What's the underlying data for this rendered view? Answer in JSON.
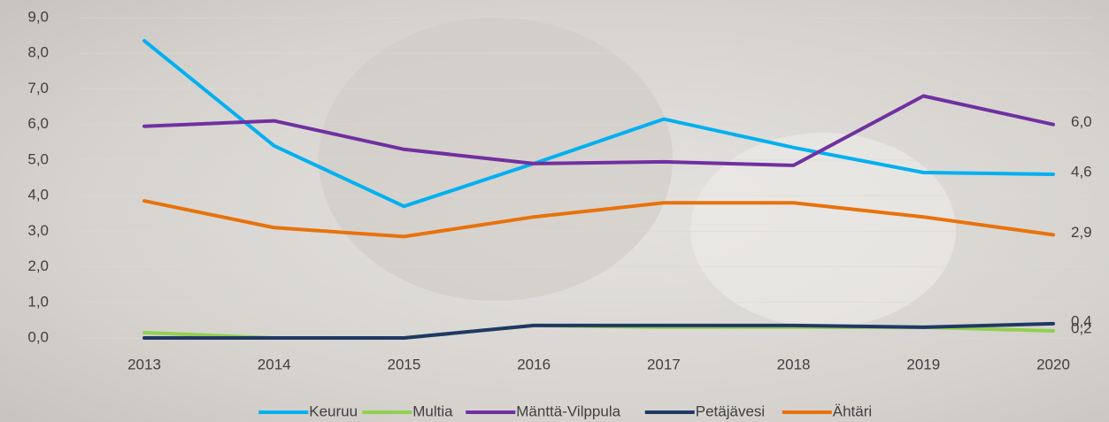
{
  "chart_data": {
    "type": "line",
    "categories": [
      "2013",
      "2014",
      "2015",
      "2016",
      "2017",
      "2018",
      "2019",
      "2020"
    ],
    "series": [
      {
        "name": "Keuruu",
        "color": "#00b0f0",
        "values": [
          8.35,
          5.4,
          3.7,
          4.9,
          6.15,
          5.35,
          4.65,
          4.6
        ],
        "value_labels": [
          null,
          null,
          null,
          null,
          null,
          null,
          null,
          "4,6"
        ]
      },
      {
        "name": "Multia",
        "color": "#92d050",
        "values": [
          0.15,
          0,
          0,
          0.35,
          0.3,
          0.3,
          0.3,
          0.2
        ],
        "value_labels": [
          null,
          null,
          null,
          null,
          null,
          null,
          null,
          "0,2"
        ]
      },
      {
        "name": "Mänttä-Vilppula",
        "color": "#7030a0",
        "values": [
          5.95,
          6.1,
          5.3,
          4.9,
          4.95,
          4.85,
          6.8,
          6.0
        ],
        "value_labels": [
          null,
          null,
          null,
          null,
          null,
          null,
          null,
          "6,0"
        ]
      },
      {
        "name": "Petäjävesi",
        "color": "#203864",
        "values": [
          0,
          0,
          0,
          0.35,
          0.35,
          0.35,
          0.3,
          0.4
        ],
        "value_labels": [
          null,
          null,
          null,
          null,
          null,
          null,
          null,
          "0,4"
        ]
      },
      {
        "name": "Ähtäri",
        "color": "#e8720c",
        "values": [
          3.85,
          3.1,
          2.85,
          3.4,
          3.8,
          3.8,
          3.4,
          2.9
        ],
        "value_labels": [
          null,
          null,
          null,
          null,
          null,
          null,
          null,
          "2,9"
        ]
      }
    ],
    "ylim": [
      0,
      9
    ],
    "yticks": [
      {
        "value": 0,
        "label": "0,0"
      },
      {
        "value": 1,
        "label": "1,0"
      },
      {
        "value": 2,
        "label": "2,0"
      },
      {
        "value": 3,
        "label": "3,0"
      },
      {
        "value": 4,
        "label": "4,0"
      },
      {
        "value": 5,
        "label": "5,0"
      },
      {
        "value": 6,
        "label": "6,0"
      },
      {
        "value": 7,
        "label": "7,0"
      },
      {
        "value": 8,
        "label": "8,0"
      },
      {
        "value": 9,
        "label": "9,0"
      }
    ],
    "grid": true,
    "legend": "bottom"
  }
}
